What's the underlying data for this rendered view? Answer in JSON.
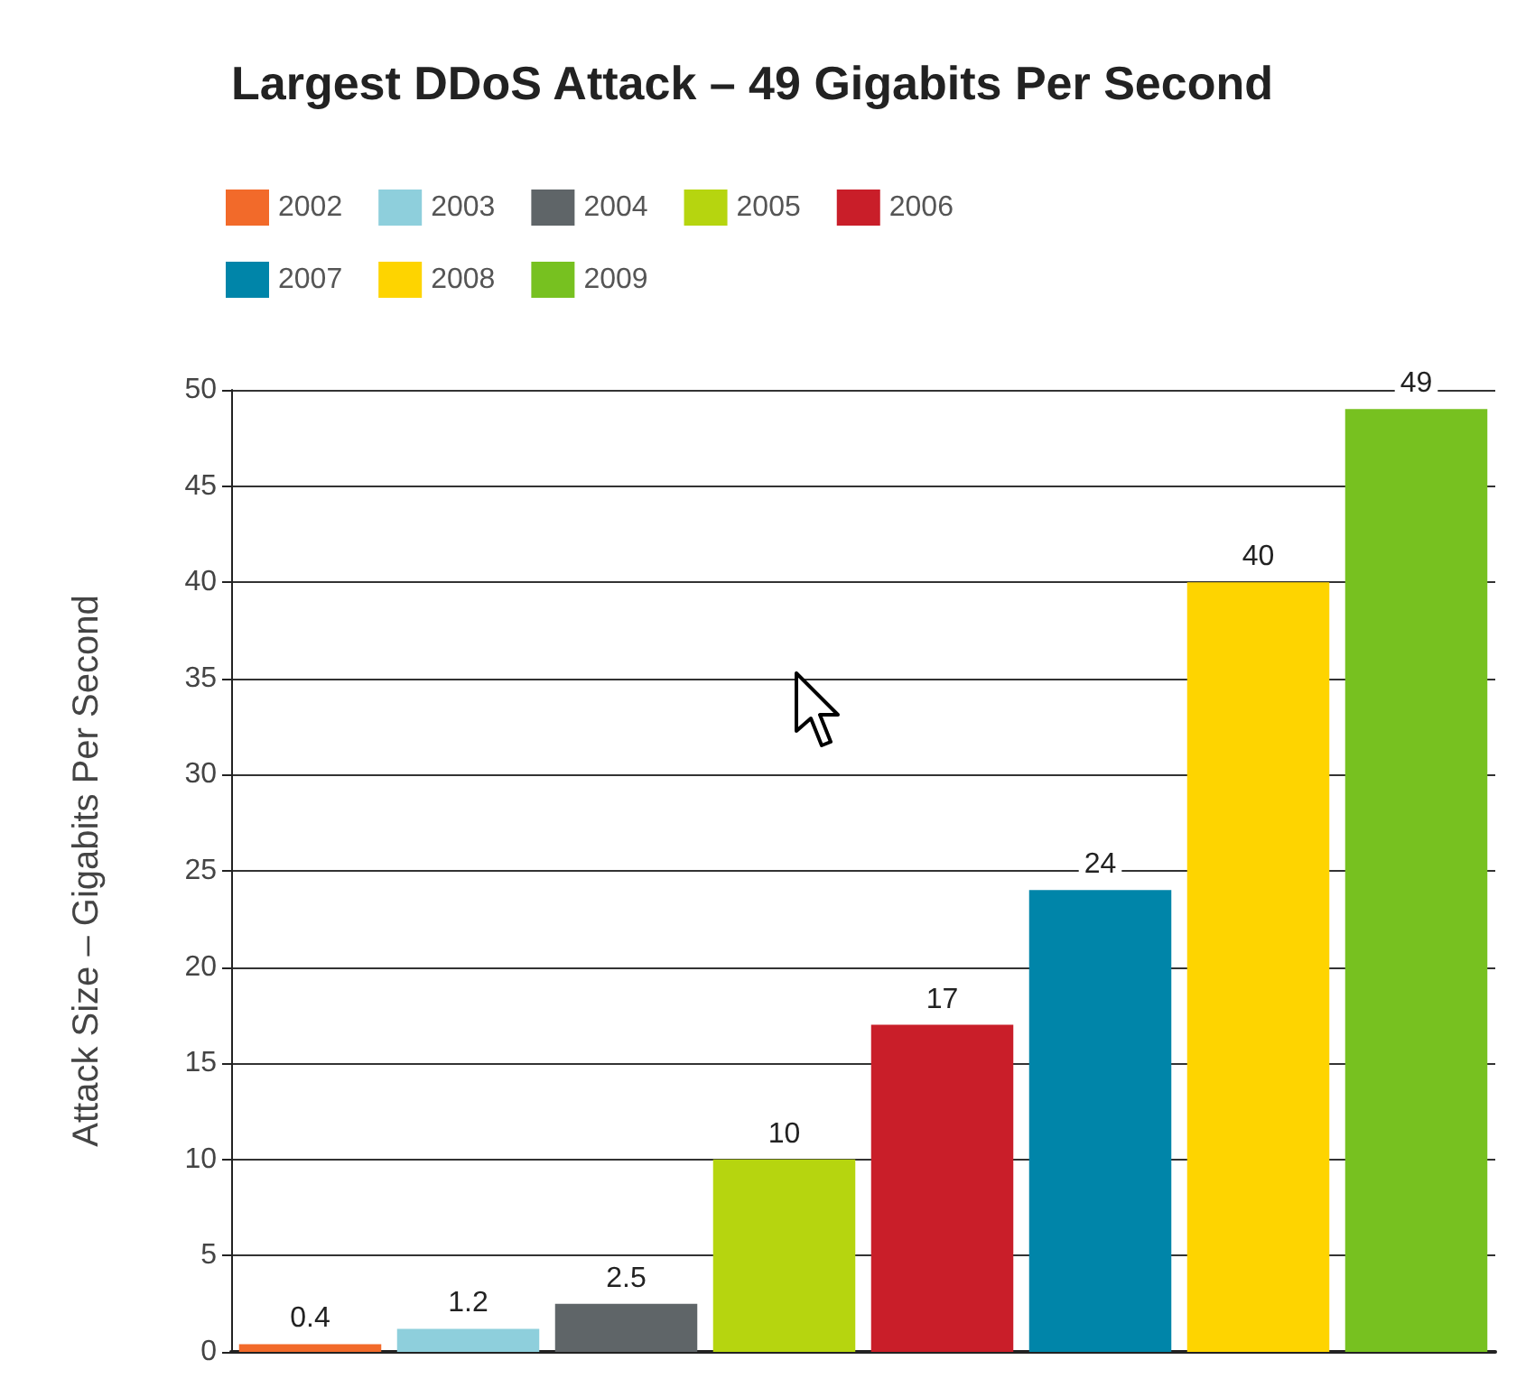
{
  "chart_data": {
    "type": "bar",
    "title": "Largest DDoS Attack – 49 Gigabits Per Second",
    "ylabel": "Attack Size – Gigabits Per Second",
    "categories": [
      null,
      null,
      null,
      null,
      null,
      null,
      null,
      null
    ],
    "series": [
      {
        "name": "2002",
        "color": "#f26a2a",
        "values": [
          0.4,
          null,
          null,
          null,
          null,
          null,
          null,
          null
        ]
      },
      {
        "name": "2003",
        "color": "#8ecfdc",
        "values": [
          null,
          1.2,
          null,
          null,
          null,
          null,
          null,
          null
        ]
      },
      {
        "name": "2004",
        "color": "#5f6568",
        "values": [
          null,
          null,
          2.5,
          null,
          null,
          null,
          null,
          null
        ]
      },
      {
        "name": "2005",
        "color": "#b6d50f",
        "values": [
          null,
          null,
          null,
          10,
          null,
          null,
          null,
          null
        ]
      },
      {
        "name": "2006",
        "color": "#c91e29",
        "values": [
          null,
          null,
          null,
          null,
          17,
          null,
          null,
          null
        ]
      },
      {
        "name": "2007",
        "color": "#0085a9",
        "values": [
          null,
          null,
          null,
          null,
          null,
          24,
          null,
          null
        ]
      },
      {
        "name": "2008",
        "color": "#fed400",
        "values": [
          null,
          null,
          null,
          null,
          null,
          null,
          40,
          null
        ]
      },
      {
        "name": "2009",
        "color": "#77c120",
        "values": [
          null,
          null,
          null,
          null,
          null,
          null,
          null,
          49
        ]
      }
    ],
    "ylim": [
      0,
      50
    ],
    "yticks": [
      0,
      5,
      10,
      15,
      20,
      25,
      30,
      35,
      40,
      45,
      50
    ],
    "grid": "y",
    "legend": "top left",
    "data_labels": true
  }
}
